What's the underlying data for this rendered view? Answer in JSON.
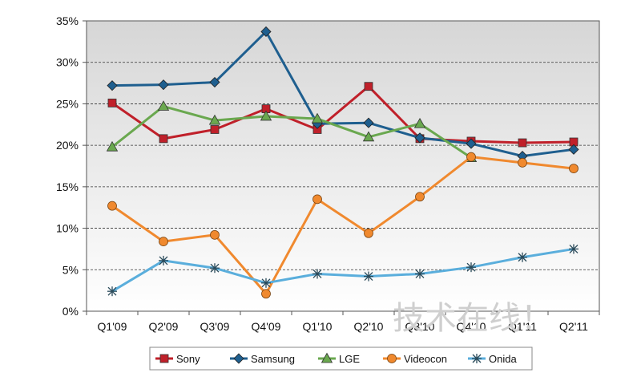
{
  "chart_data": {
    "type": "line",
    "categories": [
      "Q1'09",
      "Q2'09",
      "Q3'09",
      "Q4'09",
      "Q1'10",
      "Q2'10",
      "Q3'10",
      "Q4'10",
      "Q1'11",
      "Q2'11"
    ],
    "ylim": [
      0,
      35
    ],
    "yticks": [
      0,
      5,
      10,
      15,
      20,
      25,
      30,
      35
    ],
    "y_tick_labels": [
      "0%",
      "5%",
      "10%",
      "15%",
      "20%",
      "25%",
      "30%",
      "35%"
    ],
    "grid": "horizontal dashed",
    "legend_position": "bottom",
    "title": "",
    "xlabel": "",
    "ylabel": "",
    "series": [
      {
        "name": "Sony",
        "color": "#c0202a",
        "marker": "square",
        "values": [
          25.1,
          20.8,
          21.9,
          24.4,
          21.9,
          27.1,
          20.8,
          20.5,
          20.3,
          20.4
        ]
      },
      {
        "name": "Samsung",
        "color": "#1f5f8f",
        "marker": "diamond",
        "values": [
          27.2,
          27.3,
          27.6,
          33.7,
          22.6,
          22.7,
          20.9,
          20.2,
          18.7,
          19.5
        ]
      },
      {
        "name": "LGE",
        "color": "#6aa84f",
        "marker": "triangle",
        "values": [
          19.8,
          24.7,
          23.0,
          23.5,
          23.2,
          21.0,
          22.6,
          18.5,
          null,
          null
        ]
      },
      {
        "name": "Videocon",
        "color": "#f0892e",
        "marker": "circle",
        "values": [
          12.7,
          8.4,
          9.2,
          2.1,
          13.5,
          9.4,
          13.8,
          18.6,
          17.9,
          17.2
        ]
      },
      {
        "name": "Onida",
        "color": "#5aaedc",
        "marker": "asterisk",
        "values": [
          2.4,
          6.1,
          5.2,
          3.4,
          4.5,
          4.2,
          4.5,
          5.3,
          6.5,
          7.5
        ]
      }
    ]
  },
  "watermark": "技术在线！"
}
